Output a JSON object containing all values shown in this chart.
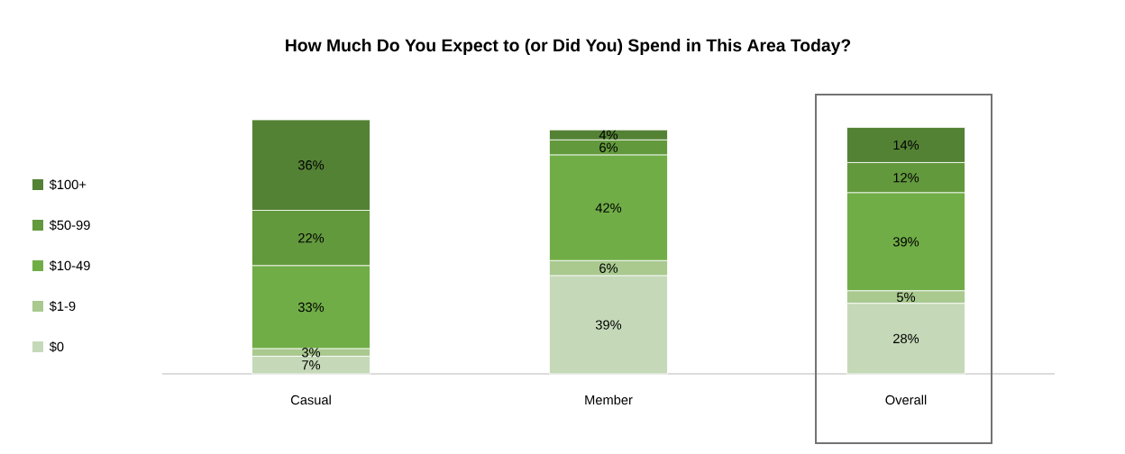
{
  "chart_data": {
    "type": "bar",
    "title": "How Much Do You Expect to (or Did You) Spend in This Area Today?",
    "categories": [
      "Casual",
      "Member",
      "Overall"
    ],
    "stacked": true,
    "legend": "left",
    "series": [
      {
        "name": "$0",
        "color": "#c5d9b8",
        "values": [
          7,
          39,
          28
        ],
        "value_labels": [
          "7%",
          "39%",
          "28%"
        ]
      },
      {
        "name": "$1-9",
        "color": "#a9c98f",
        "values": [
          3,
          6,
          5
        ],
        "value_labels": [
          "3%",
          "6%",
          "5%"
        ]
      },
      {
        "name": "$10-49",
        "color": "#70ad47",
        "values": [
          33,
          42,
          39
        ],
        "value_labels": [
          "33%",
          "42%",
          "39%"
        ]
      },
      {
        "name": "$50-99",
        "color": "#63993d",
        "values": [
          22,
          6,
          12
        ],
        "value_labels": [
          "22%",
          "6%",
          "12%"
        ]
      },
      {
        "name": "$100+",
        "color": "#548235",
        "values": [
          36,
          4,
          14
        ],
        "value_labels": [
          "36%",
          "4%",
          "14%"
        ]
      }
    ]
  }
}
